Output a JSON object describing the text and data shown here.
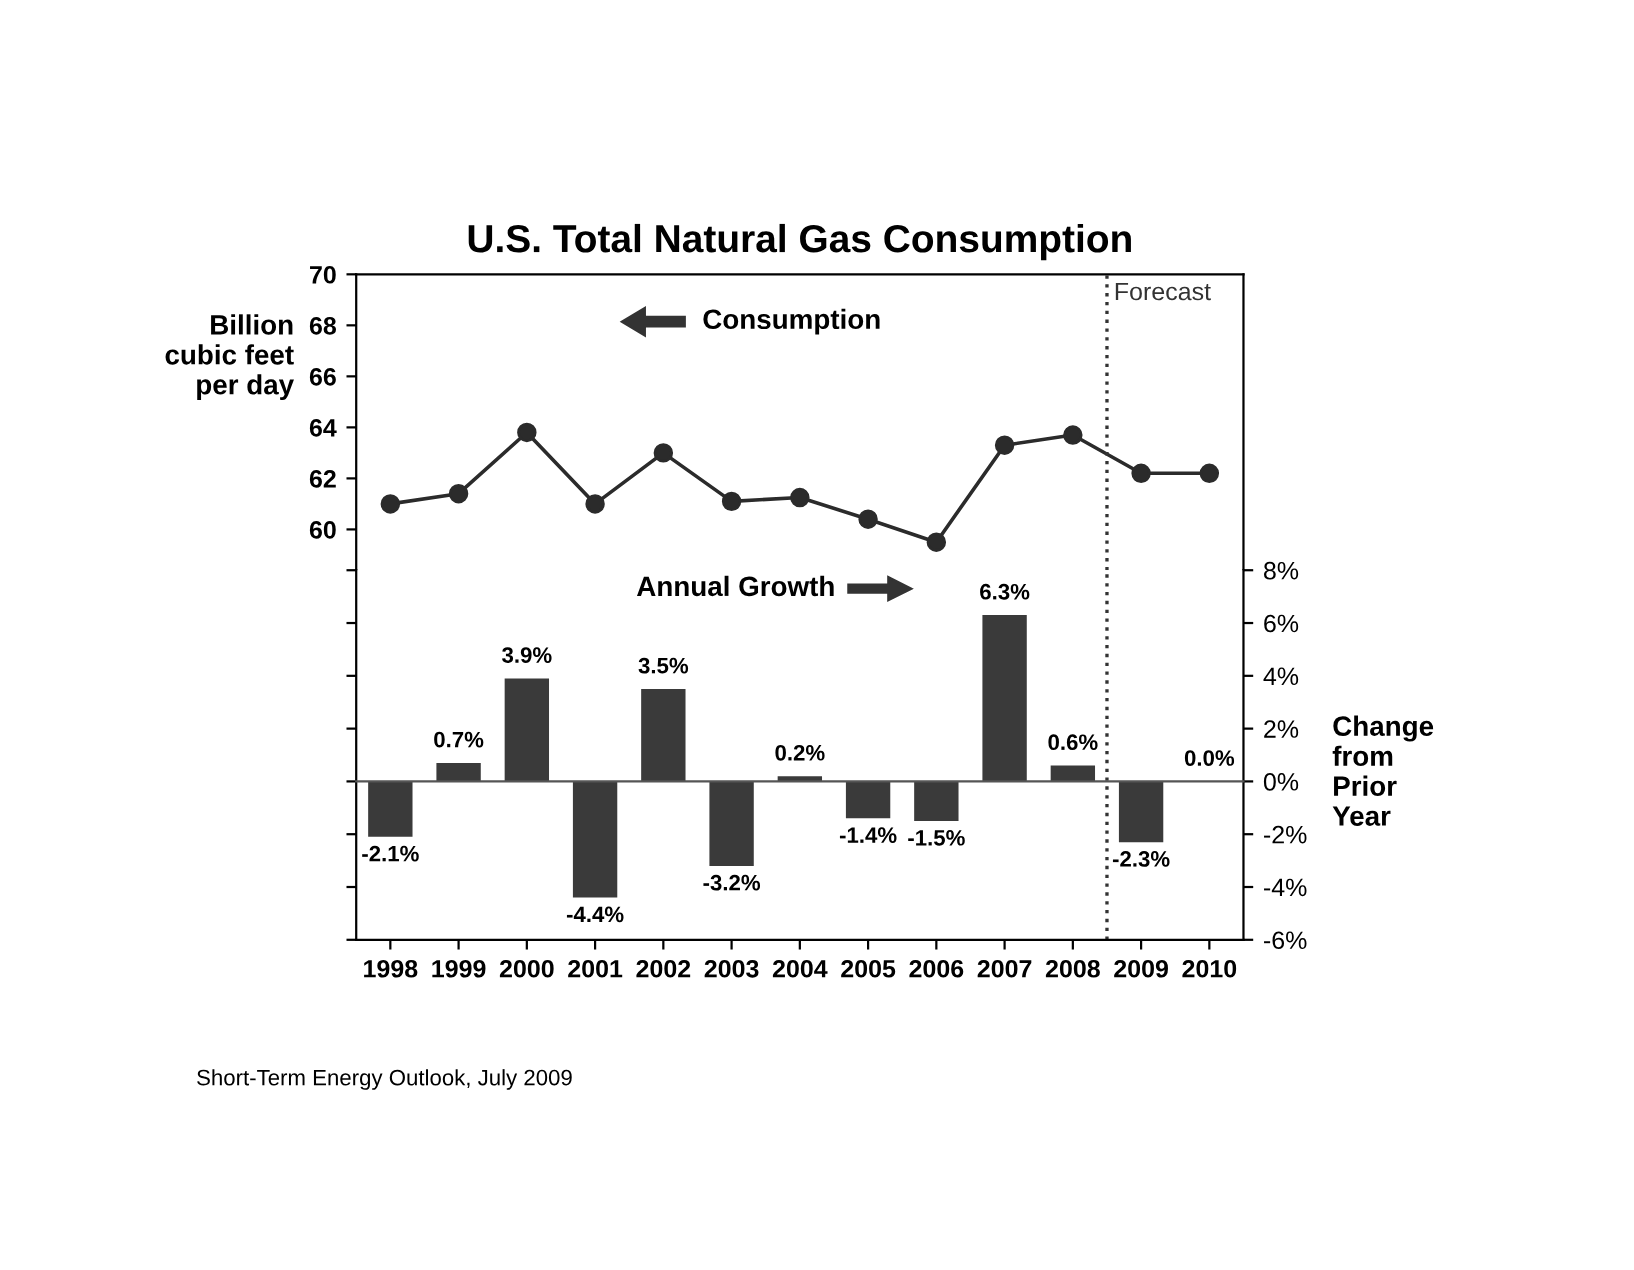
{
  "chart_data": [
    {
      "type": "line",
      "title": "U.S. Total Natural Gas Consumption",
      "ylabel": "Billion\ncubic feet\nper day",
      "x": [
        1998,
        1999,
        2000,
        2001,
        2002,
        2003,
        2004,
        2005,
        2006,
        2007,
        2008,
        2009,
        2010
      ],
      "series": [
        {
          "color": "#2b2b2b",
          "values": [
            61.0,
            61.4,
            63.8,
            61.0,
            63.0,
            61.1,
            61.25,
            60.4,
            59.5,
            63.3,
            63.7,
            62.2,
            62.2
          ]
        }
      ],
      "marker": "circle",
      "line_style": "solid",
      "xlim": [
        1997.5,
        2010.5
      ],
      "ylim": [
        58.4,
        70
      ],
      "yticks": [
        60,
        62,
        64,
        66,
        68,
        70
      ],
      "tick_labels": "y",
      "ref_lines": [
        {
          "axis": "x",
          "value": 2008.5,
          "label": "Forecast",
          "line_style": "dotted",
          "color": "#333333"
        }
      ],
      "annotations": [
        "Consumption"
      ]
    },
    {
      "type": "bar",
      "ylabel": "Change\nfrom\nPrior\nYear",
      "x": [
        1998,
        1999,
        2000,
        2001,
        2002,
        2003,
        2004,
        2005,
        2006,
        2007,
        2008,
        2009,
        2010
      ],
      "values": [
        -2.1,
        0.7,
        3.9,
        -4.4,
        3.5,
        -3.2,
        0.2,
        -1.4,
        -1.5,
        6.3,
        0.6,
        -2.3,
        0.0
      ],
      "value_labels": [
        "-2.1%",
        "0.7%",
        "3.9%",
        "-4.4%",
        "3.5%",
        "-3.2%",
        "0.2%",
        "-1.4%",
        "-1.5%",
        "6.3%",
        "0.6%",
        "-2.3%",
        "0.0%"
      ],
      "color": "#3a3a3a",
      "xlim": [
        1997.5,
        2010.5
      ],
      "xticks": [
        1998,
        1999,
        2000,
        2001,
        2002,
        2003,
        2004,
        2005,
        2006,
        2007,
        2008,
        2009,
        2010
      ],
      "ylim": [
        -6,
        8
      ],
      "yticks": [
        {
          "value": -6,
          "label": "-6%"
        },
        {
          "value": -4,
          "label": "-4%"
        },
        {
          "value": -2,
          "label": "-2%"
        },
        {
          "value": 0,
          "label": "0%"
        },
        {
          "value": 2,
          "label": "2%"
        },
        {
          "value": 4,
          "label": "4%"
        },
        {
          "value": 6,
          "label": "6%"
        },
        {
          "value": 8,
          "label": "8%"
        }
      ],
      "ref_lines": [
        {
          "axis": "x",
          "value": 2008.5,
          "line_style": "dotted",
          "color": "#333333"
        }
      ],
      "annotations": [
        "Annual Growth",
        "Short-Term Energy Outlook, July 2009"
      ]
    }
  ]
}
